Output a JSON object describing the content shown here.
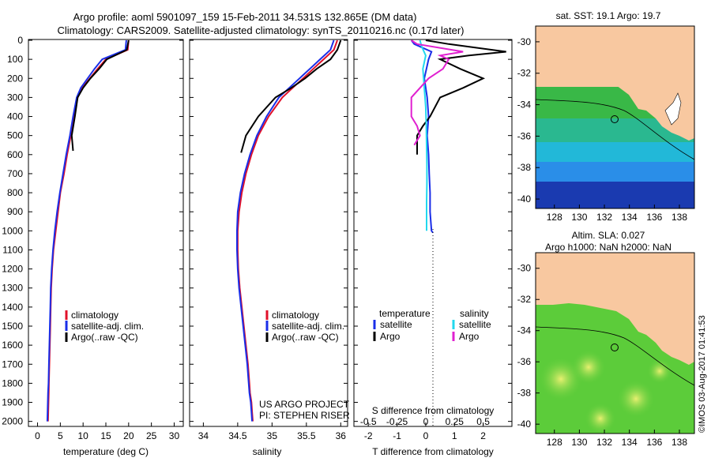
{
  "header": {
    "title_line1": "Argo profile: aoml 5901097_159 15-Feb-2011 34.531S 132.865E (DM data)",
    "title_line2": "Climatology: CARS2009. Satellite-adjusted climatology: synTS_20110216.nc (0.17d later)"
  },
  "colors": {
    "climatology": "#e0102a",
    "satellite": "#1a2ee8",
    "argo": "#000000",
    "salinity_satellite": "#22d8ee",
    "salinity_argo": "#e020d0",
    "land": "#f8c8a0",
    "axis": "#000000"
  },
  "depth_ticks": [
    0,
    100,
    200,
    300,
    400,
    500,
    600,
    700,
    800,
    900,
    1000,
    1100,
    1200,
    1300,
    1400,
    1500,
    1600,
    1700,
    1800,
    1900,
    2000
  ],
  "panels": {
    "temperature": {
      "xlabel": "temperature (deg C)",
      "xticks": [
        0,
        5,
        10,
        15,
        20,
        25,
        30
      ],
      "legend": [
        "climatology",
        "satellite-adj. clim.",
        "Argo(..raw -QC)"
      ]
    },
    "salinity": {
      "xlabel": "salinity",
      "xticks": [
        "34",
        "34.5",
        "35",
        "35.5",
        "36"
      ],
      "legend": [
        "climatology",
        "satellite-adj. clim.",
        "Argo(..raw -QC)"
      ],
      "credit_line1": "US ARGO PROJECT",
      "credit_line2": "PI: STEPHEN RISER"
    },
    "difference": {
      "top_label": "S difference from climatology",
      "top_ticks": [
        "-0.5",
        "-0.25",
        "0",
        "0.25",
        "0.5"
      ],
      "xlabel": "T difference from climatology",
      "xticks": [
        "-2",
        "-1",
        "0",
        "1",
        "2"
      ],
      "legend_temperature_title": "temperature",
      "legend_salinity_title": "salinity",
      "legend_satellite": "satellite",
      "legend_argo": "Argo"
    }
  },
  "maps": {
    "sst_title": "sat. SST: 19.1 Argo: 19.7",
    "sla_title_line1": "Altim. SLA: 0.027",
    "sla_title_line2": "Argo h1000: NaN h2000: NaN",
    "lat_ticks": [
      "-30",
      "-32",
      "-34",
      "-36",
      "-38",
      "-40"
    ],
    "lon_ticks": [
      "128",
      "130",
      "132",
      "134",
      "136",
      "138"
    ],
    "argo_lon": 132.865,
    "argo_lat": -34.531,
    "footer": "©IMOS 03-Aug-2017 01:41:53"
  },
  "chart_data": [
    {
      "type": "line",
      "title": "",
      "xlabel": "temperature (deg C)",
      "ylabel": "",
      "xlim": [
        -2,
        32
      ],
      "ylim": [
        2000,
        0
      ],
      "series": [
        {
          "name": "climatology",
          "x": [
            20,
            19.8,
            15,
            13.2,
            11.5,
            9.8,
            8.8,
            8,
            7.3,
            6.5,
            5.8,
            5,
            4.5,
            4,
            3.5,
            3.2,
            3,
            2.9,
            2.8,
            2.7,
            2.6,
            2.5,
            2.45,
            2.4,
            2.35,
            2.3
          ],
          "y": [
            0,
            50,
            100,
            150,
            200,
            250,
            300,
            400,
            500,
            600,
            700,
            800,
            900,
            1000,
            1100,
            1200,
            1300,
            1400,
            1500,
            1600,
            1700,
            1800,
            1850,
            1900,
            1950,
            2000
          ]
        },
        {
          "name": "satellite-adj. clim.",
          "x": [
            19.5,
            19.3,
            14.2,
            12.5,
            11,
            9.5,
            8.6,
            7.8,
            7.1,
            6.3,
            5.6,
            4.9,
            4.3,
            3.8,
            3.4,
            3.1,
            2.9,
            2.8,
            2.7,
            2.6,
            2.5,
            2.4,
            2.3,
            2.25,
            2.2,
            2.15
          ],
          "y": [
            0,
            50,
            100,
            150,
            200,
            250,
            300,
            400,
            500,
            600,
            700,
            800,
            900,
            1000,
            1100,
            1200,
            1300,
            1400,
            1500,
            1600,
            1700,
            1800,
            1850,
            1900,
            1950,
            2000
          ]
        },
        {
          "name": "Argo(..raw -QC)",
          "x": [
            20,
            19.6,
            15.2,
            13.5,
            11.6,
            10,
            8.8,
            8.2,
            7.5,
            7.8
          ],
          "y": [
            0,
            50,
            100,
            150,
            200,
            250,
            300,
            400,
            500,
            580
          ]
        }
      ]
    },
    {
      "type": "line",
      "title": "",
      "xlabel": "salinity",
      "ylabel": "",
      "xlim": [
        33.8,
        36.1
      ],
      "ylim": [
        2000,
        0
      ],
      "series": [
        {
          "name": "climatology",
          "x": [
            35.95,
            35.9,
            35.75,
            35.6,
            35.45,
            35.3,
            35.15,
            34.95,
            34.8,
            34.7,
            34.62,
            34.56,
            34.52,
            34.5,
            34.5,
            34.51,
            34.53,
            34.56,
            34.59,
            34.62,
            34.65,
            34.67,
            34.68,
            34.7,
            34.71,
            34.72
          ],
          "y": [
            0,
            50,
            100,
            150,
            200,
            250,
            300,
            400,
            500,
            600,
            700,
            800,
            900,
            1000,
            1100,
            1200,
            1300,
            1400,
            1500,
            1600,
            1700,
            1800,
            1850,
            1900,
            1950,
            2000
          ]
        },
        {
          "name": "satellite-adj. clim.",
          "x": [
            35.9,
            35.85,
            35.7,
            35.55,
            35.4,
            35.25,
            35.1,
            34.92,
            34.78,
            34.68,
            34.6,
            34.54,
            34.5,
            34.49,
            34.49,
            34.5,
            34.52,
            34.55,
            34.58,
            34.61,
            34.64,
            34.66,
            34.67,
            34.69,
            34.7,
            34.71
          ],
          "y": [
            0,
            50,
            100,
            150,
            200,
            250,
            300,
            400,
            500,
            600,
            700,
            800,
            900,
            1000,
            1100,
            1200,
            1300,
            1400,
            1500,
            1600,
            1700,
            1800,
            1850,
            1900,
            1950,
            2000
          ]
        },
        {
          "name": "Argo(..raw -QC)",
          "x": [
            36,
            35.95,
            35.85,
            35.65,
            35.48,
            35.28,
            35.05,
            34.8,
            34.62,
            34.55
          ],
          "y": [
            0,
            50,
            100,
            150,
            200,
            250,
            300,
            400,
            500,
            590
          ]
        }
      ]
    },
    {
      "type": "line",
      "title": "",
      "xlabel": "T difference from climatology",
      "ylabel": "",
      "xlim": [
        -2.5,
        3
      ],
      "ylim": [
        2000,
        0
      ],
      "series": [
        {
          "name": "satellite",
          "x": [
            -0.5,
            -0.4,
            0.2,
            0.1,
            -0.05,
            0.05,
            0.1,
            0.05,
            0.1,
            0.12,
            0.15,
            0.15,
            0.2,
            0.25
          ],
          "y": [
            0,
            20,
            60,
            100,
            200,
            300,
            400,
            500,
            600,
            700,
            800,
            900,
            1000,
            1010
          ]
        },
        {
          "name": "Argo",
          "x": [
            0,
            0.8,
            2.8,
            1.5,
            0.5,
            1.2,
            2,
            1.3,
            0.5,
            0.15,
            -0.1,
            -0.3,
            -0.3
          ],
          "y": [
            0,
            20,
            60,
            80,
            100,
            150,
            200,
            250,
            300,
            400,
            450,
            500,
            600
          ]
        },
        {
          "name": "satellite",
          "x": [
            -0.2,
            -0.15,
            0.0,
            -0.1,
            -0.05,
            0.0,
            0.02,
            0.03,
            0.04,
            0.04,
            0.03,
            0.03,
            0.03
          ],
          "y": [
            0,
            30,
            80,
            150,
            250,
            350,
            450,
            550,
            650,
            750,
            850,
            950,
            1000
          ]
        },
        {
          "name": "Argo",
          "x": [
            -0.5,
            -0.3,
            1.3,
            0.5,
            0.8,
            0.6,
            0.1,
            -0.5,
            -0.5,
            -0.3,
            -0.2,
            -0.4
          ],
          "y": [
            0,
            20,
            60,
            80,
            100,
            150,
            200,
            300,
            400,
            450,
            500,
            550
          ]
        }
      ]
    }
  ]
}
